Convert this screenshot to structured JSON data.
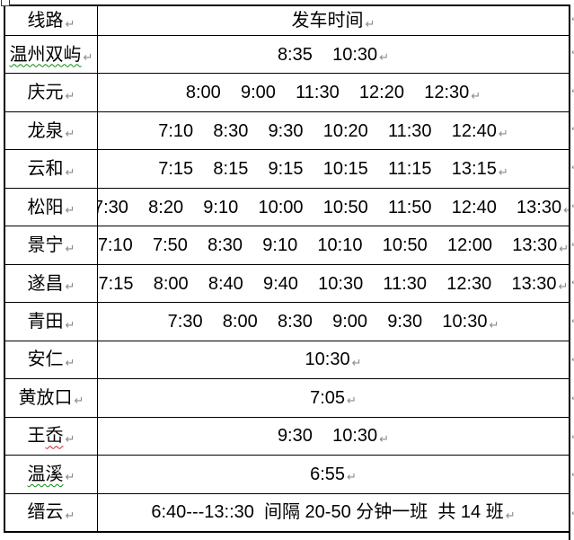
{
  "glyphs": {
    "pilcrow": "↵",
    "row_end": "↵"
  },
  "colors": {
    "border": "#000000",
    "text": "#000000",
    "format_mark": "#8a8a8a",
    "squiggle_green": "#0a8a0a",
    "squiggle_red": "#cc1f1f"
  },
  "table": {
    "header": {
      "route_label": "线路",
      "time_label": "发车时间"
    },
    "rows": [
      {
        "route": "温州双屿",
        "plain": "",
        "marked": "温州双屿",
        "squiggle": "squiggle-green",
        "times": [
          "8:35",
          "10:30"
        ]
      },
      {
        "route": "庆元",
        "plain": "庆元",
        "marked": "",
        "squiggle": "",
        "times": [
          "8:00",
          "9:00",
          "11:30",
          "12:20",
          "12:30"
        ]
      },
      {
        "route": "龙泉",
        "plain": "龙泉",
        "marked": "",
        "squiggle": "",
        "times": [
          "7:10",
          "8:30",
          "9:30",
          "10:20",
          "11:30",
          "12:40"
        ]
      },
      {
        "route": "云和",
        "plain": "云和",
        "marked": "",
        "squiggle": "",
        "times": [
          "7:15",
          "8:15",
          "9:15",
          "10:15",
          "11:15",
          "13:15"
        ]
      },
      {
        "route": "松阳",
        "plain": "松阳",
        "marked": "",
        "squiggle": "",
        "times": [
          "7:30",
          "8:20",
          "9:10",
          "10:00",
          "10:50",
          "11:50",
          "12:40",
          "13:30"
        ]
      },
      {
        "route": "景宁",
        "plain": "景宁",
        "marked": "",
        "squiggle": "",
        "times": [
          "7:10",
          "7:50",
          "8:30",
          "9:10",
          "10:10",
          "10:50",
          "12:00",
          "13:30"
        ]
      },
      {
        "route": "遂昌",
        "plain": "遂昌",
        "marked": "",
        "squiggle": "",
        "times": [
          "7:15",
          "8:00",
          "8:40",
          "9:40",
          "10:30",
          "11:30",
          "12:30",
          "13:30"
        ]
      },
      {
        "route": "青田",
        "plain": "青田",
        "marked": "",
        "squiggle": "",
        "times": [
          "7:30",
          "8:00",
          "8:30",
          "9:00",
          "9:30",
          "10:30"
        ]
      },
      {
        "route": "安仁",
        "plain": "安仁",
        "marked": "",
        "squiggle": "",
        "times": [
          "10:30"
        ]
      },
      {
        "route": "黄放口",
        "plain": "黄放口",
        "marked": "",
        "squiggle": "",
        "times": [
          "7:05"
        ]
      },
      {
        "route": "王岙",
        "plain": "王",
        "marked": "岙",
        "squiggle": "squiggle-red",
        "times": [
          "9:30",
          "10:30"
        ]
      },
      {
        "route": "温溪",
        "plain": "",
        "marked": "温溪",
        "squiggle": "squiggle-green",
        "times": [
          "6:55"
        ]
      },
      {
        "route": "缙云",
        "plain": "缙云",
        "marked": "",
        "squiggle": "",
        "times_text": "6:40---13::30  间隔 20-50 分钟一班  共 14 班"
      }
    ]
  }
}
